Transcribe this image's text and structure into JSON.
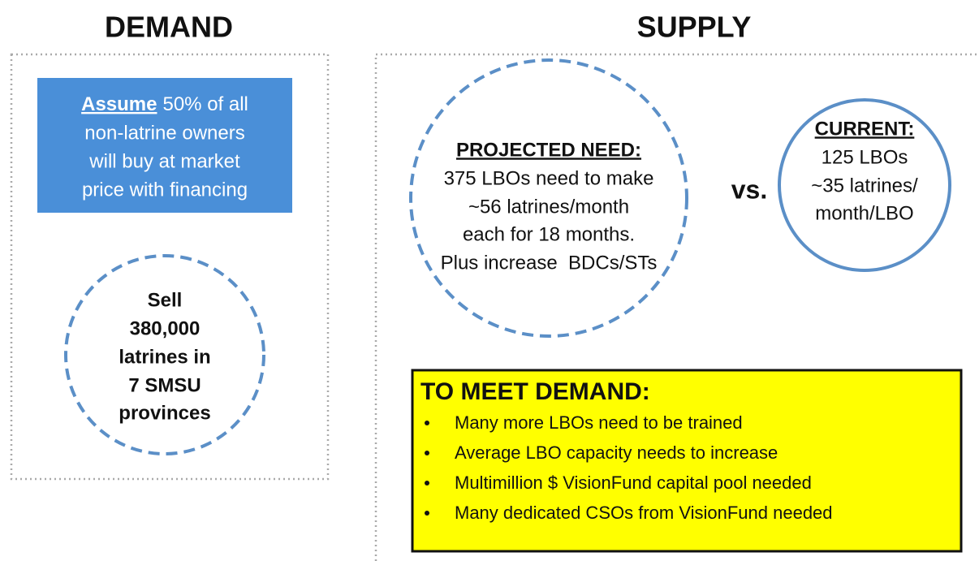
{
  "demand": {
    "title": "DEMAND",
    "assumption": {
      "emphasis": "Assume",
      "lines": [
        "50% of all",
        "non-latrine owners",
        "will buy at market",
        "price with financing"
      ]
    },
    "goal": {
      "lines": [
        "Sell",
        "380,000",
        "latrines in",
        "7 SMSU",
        "provinces"
      ]
    }
  },
  "supply": {
    "title": "SUPPLY",
    "projected_need": {
      "heading": "PROJECTED NEED:",
      "lines": [
        "375 LBOs need to make",
        "~56 latrines/month",
        "each for 18 months.",
        "Plus increase  BDCs/STs"
      ]
    },
    "comparison": "vs.",
    "current": {
      "heading": "CURRENT:",
      "lines": [
        "125 LBOs",
        "~35 latrines/",
        "month/LBO"
      ]
    },
    "to_meet_demand": {
      "heading": "TO MEET DEMAND:",
      "items": [
        "Many more LBOs need to be trained",
        "Average LBO capacity needs to increase",
        "Multimillion $ VisionFund capital pool needed",
        "Many dedicated CSOs from VisionFund needed"
      ]
    }
  }
}
